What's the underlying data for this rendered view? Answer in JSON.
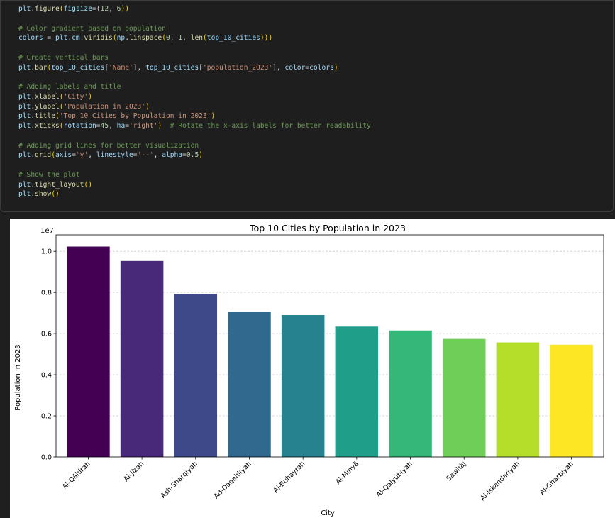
{
  "code_cell": {
    "lines": [
      [
        {
          "t": "plt",
          "c": "id"
        },
        {
          "t": ".",
          "c": "op"
        },
        {
          "t": "figure",
          "c": "fn"
        },
        {
          "t": "(",
          "c": "paren"
        },
        {
          "t": "figsize",
          "c": "id"
        },
        {
          "t": "=(",
          "c": "op"
        },
        {
          "t": "12",
          "c": "num"
        },
        {
          "t": ", ",
          "c": "op"
        },
        {
          "t": "6",
          "c": "num"
        },
        {
          "t": "))",
          "c": "paren"
        }
      ],
      [],
      [
        {
          "t": "# Color gradient based on population",
          "c": "comment"
        }
      ],
      [
        {
          "t": "colors",
          "c": "id"
        },
        {
          "t": " = ",
          "c": "op"
        },
        {
          "t": "plt",
          "c": "id"
        },
        {
          "t": ".",
          "c": "op"
        },
        {
          "t": "cm",
          "c": "id"
        },
        {
          "t": ".",
          "c": "op"
        },
        {
          "t": "viridis",
          "c": "fn"
        },
        {
          "t": "(",
          "c": "paren"
        },
        {
          "t": "np",
          "c": "id"
        },
        {
          "t": ".",
          "c": "op"
        },
        {
          "t": "linspace",
          "c": "fn"
        },
        {
          "t": "(",
          "c": "paren"
        },
        {
          "t": "0",
          "c": "num"
        },
        {
          "t": ", ",
          "c": "op"
        },
        {
          "t": "1",
          "c": "num"
        },
        {
          "t": ", ",
          "c": "op"
        },
        {
          "t": "len",
          "c": "fn"
        },
        {
          "t": "(",
          "c": "paren"
        },
        {
          "t": "top_10_cities",
          "c": "id"
        },
        {
          "t": ")))",
          "c": "paren"
        }
      ],
      [],
      [
        {
          "t": "# Create vertical bars",
          "c": "comment"
        }
      ],
      [
        {
          "t": "plt",
          "c": "id"
        },
        {
          "t": ".",
          "c": "op"
        },
        {
          "t": "bar",
          "c": "fn"
        },
        {
          "t": "(",
          "c": "paren"
        },
        {
          "t": "top_10_cities",
          "c": "id"
        },
        {
          "t": "[",
          "c": "op"
        },
        {
          "t": "'Name'",
          "c": "str"
        },
        {
          "t": "], ",
          "c": "op"
        },
        {
          "t": "top_10_cities",
          "c": "id"
        },
        {
          "t": "[",
          "c": "op"
        },
        {
          "t": "'population_2023'",
          "c": "str"
        },
        {
          "t": "], ",
          "c": "op"
        },
        {
          "t": "color",
          "c": "id"
        },
        {
          "t": "=",
          "c": "op"
        },
        {
          "t": "colors",
          "c": "id"
        },
        {
          "t": ")",
          "c": "paren"
        }
      ],
      [],
      [
        {
          "t": "# Adding labels and title",
          "c": "comment"
        }
      ],
      [
        {
          "t": "plt",
          "c": "id"
        },
        {
          "t": ".",
          "c": "op"
        },
        {
          "t": "xlabel",
          "c": "fn"
        },
        {
          "t": "(",
          "c": "paren"
        },
        {
          "t": "'City'",
          "c": "str"
        },
        {
          "t": ")",
          "c": "paren"
        }
      ],
      [
        {
          "t": "plt",
          "c": "id"
        },
        {
          "t": ".",
          "c": "op"
        },
        {
          "t": "ylabel",
          "c": "fn"
        },
        {
          "t": "(",
          "c": "paren"
        },
        {
          "t": "'Population in 2023'",
          "c": "str"
        },
        {
          "t": ")",
          "c": "paren"
        }
      ],
      [
        {
          "t": "plt",
          "c": "id"
        },
        {
          "t": ".",
          "c": "op"
        },
        {
          "t": "title",
          "c": "fn"
        },
        {
          "t": "(",
          "c": "paren"
        },
        {
          "t": "'Top 10 Cities by Population in 2023'",
          "c": "str"
        },
        {
          "t": ")",
          "c": "paren"
        }
      ],
      [
        {
          "t": "plt",
          "c": "id"
        },
        {
          "t": ".",
          "c": "op"
        },
        {
          "t": "xticks",
          "c": "fn"
        },
        {
          "t": "(",
          "c": "paren"
        },
        {
          "t": "rotation",
          "c": "id"
        },
        {
          "t": "=",
          "c": "op"
        },
        {
          "t": "45",
          "c": "num"
        },
        {
          "t": ", ",
          "c": "op"
        },
        {
          "t": "ha",
          "c": "id"
        },
        {
          "t": "=",
          "c": "op"
        },
        {
          "t": "'right'",
          "c": "str"
        },
        {
          "t": ")",
          "c": "paren"
        },
        {
          "t": "  # Rotate the x-axis labels for better readability",
          "c": "comment"
        }
      ],
      [],
      [
        {
          "t": "# Adding grid lines for better visualization",
          "c": "comment"
        }
      ],
      [
        {
          "t": "plt",
          "c": "id"
        },
        {
          "t": ".",
          "c": "op"
        },
        {
          "t": "grid",
          "c": "fn"
        },
        {
          "t": "(",
          "c": "paren"
        },
        {
          "t": "axis",
          "c": "id"
        },
        {
          "t": "=",
          "c": "op"
        },
        {
          "t": "'y'",
          "c": "str"
        },
        {
          "t": ", ",
          "c": "op"
        },
        {
          "t": "linestyle",
          "c": "id"
        },
        {
          "t": "=",
          "c": "op"
        },
        {
          "t": "'--'",
          "c": "str"
        },
        {
          "t": ", ",
          "c": "op"
        },
        {
          "t": "alpha",
          "c": "id"
        },
        {
          "t": "=",
          "c": "op"
        },
        {
          "t": "0.5",
          "c": "num"
        },
        {
          "t": ")",
          "c": "paren"
        }
      ],
      [],
      [
        {
          "t": "# Show the plot",
          "c": "comment"
        }
      ],
      [
        {
          "t": "plt",
          "c": "id"
        },
        {
          "t": ".",
          "c": "op"
        },
        {
          "t": "tight_layout",
          "c": "fn"
        },
        {
          "t": "()",
          "c": "paren"
        }
      ],
      [
        {
          "t": "plt",
          "c": "id"
        },
        {
          "t": ".",
          "c": "op"
        },
        {
          "t": "show",
          "c": "fn"
        },
        {
          "t": "()",
          "c": "paren"
        }
      ]
    ]
  },
  "chart_data": {
    "type": "bar",
    "title": "Top 10 Cities by Population in 2023",
    "xlabel": "City",
    "ylabel": "Population in 2023",
    "offset_label": "1e7",
    "categories": [
      "Al-Qāhirah",
      "Al-Jīzah",
      "Ash-Sharqiyah",
      "Ad-Daqahliyah",
      "Al-Buhayrah",
      "Al-Minyā",
      "Al-Qalyūbiyah",
      "Sawhāj",
      "Al-Iskandariyah",
      "Al-Gharbiyah"
    ],
    "values": [
      10230000,
      9530000,
      7920000,
      7050000,
      6900000,
      6340000,
      6150000,
      5740000,
      5570000,
      5460000
    ],
    "colors": [
      "#440154",
      "#482878",
      "#3e4989",
      "#31688e",
      "#26828e",
      "#1f9e89",
      "#35b779",
      "#6ece58",
      "#b5de2b",
      "#fde725"
    ],
    "ylim": [
      0,
      10800000
    ],
    "yticks": [
      0,
      2000000,
      4000000,
      6000000,
      8000000,
      10000000
    ],
    "ytick_labels": [
      "0.0",
      "0.2",
      "0.4",
      "0.6",
      "0.8",
      "1.0"
    ],
    "grid": "y-dashed",
    "legend": "none"
  }
}
